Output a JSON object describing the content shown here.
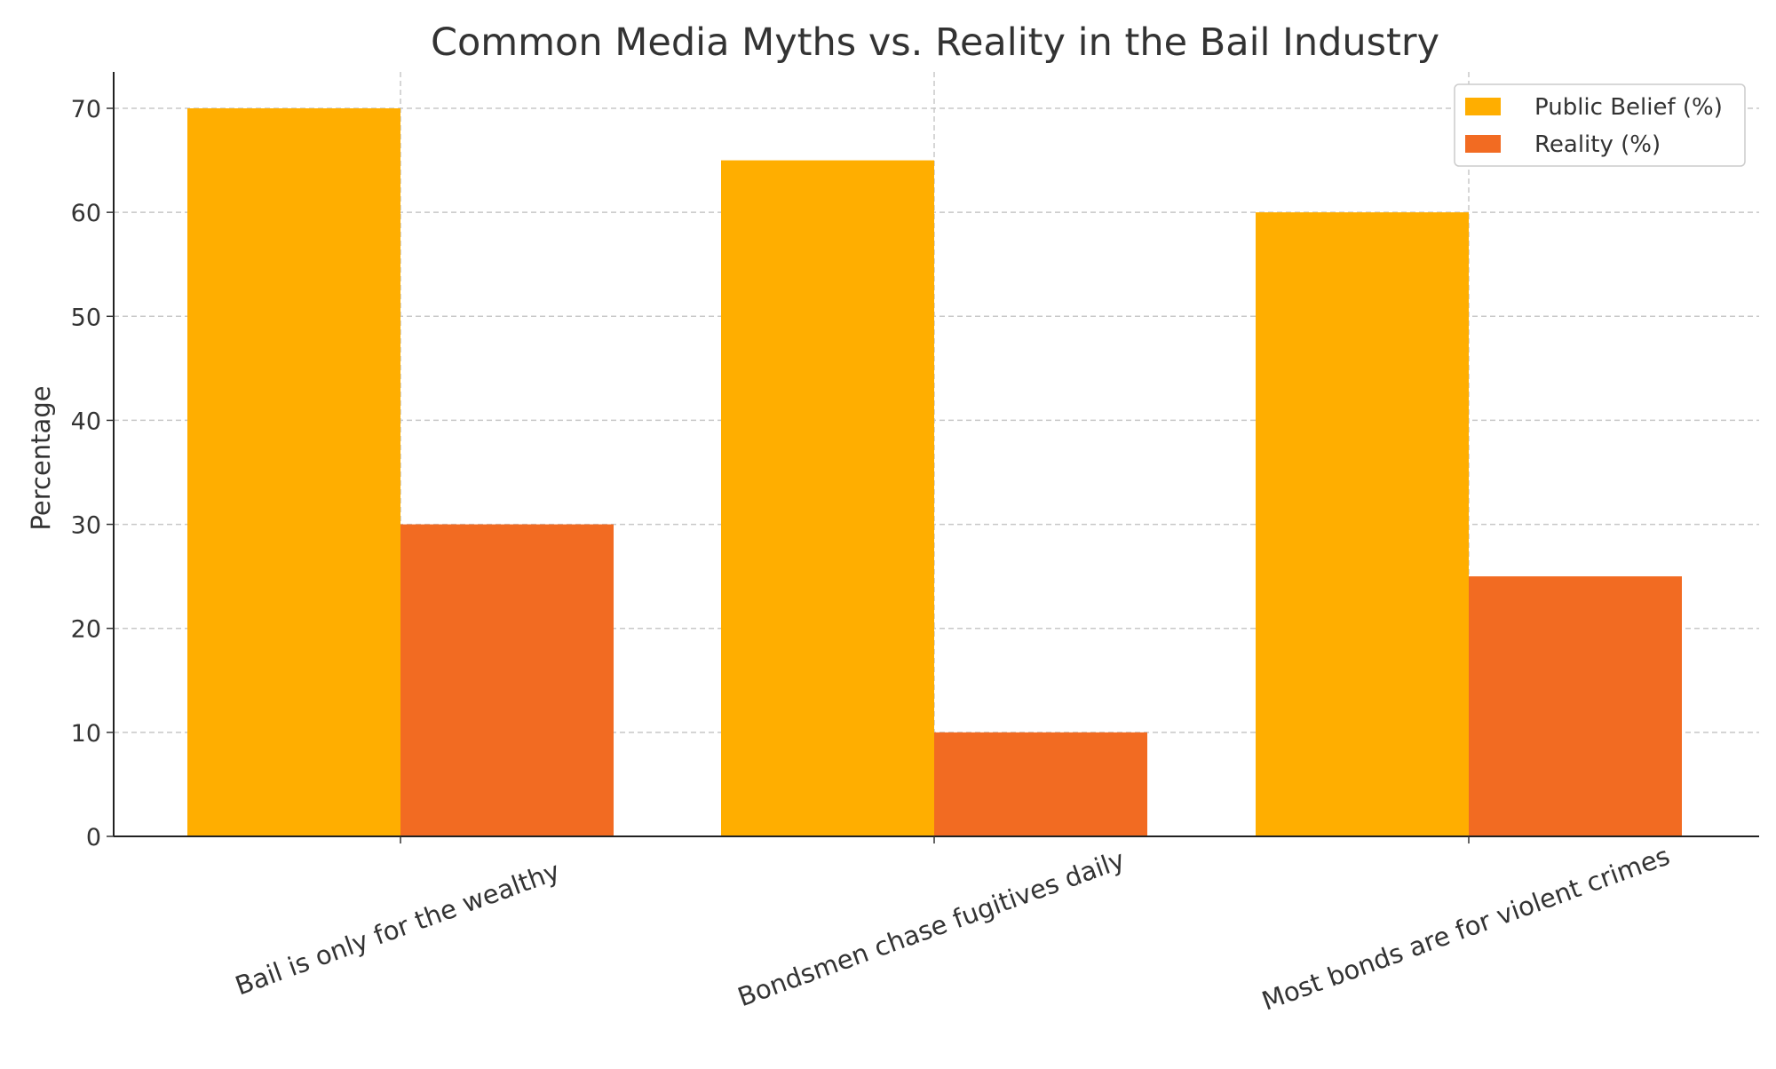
{
  "chart_data": {
    "type": "bar",
    "title": "Common Media Myths vs. Reality in the Bail Industry",
    "xlabel": "",
    "ylabel": "Percentage",
    "categories": [
      "Bail is only for the wealthy",
      "Bondsmen chase fugitives daily",
      "Most bonds are for violent crimes"
    ],
    "series": [
      {
        "name": "Public Belief (%)",
        "values": [
          70,
          65,
          60
        ],
        "color": "#FFAE00"
      },
      {
        "name": "Reality (%)",
        "values": [
          30,
          10,
          25
        ],
        "color": "#F26B22"
      }
    ],
    "ylim": [
      0,
      73.5
    ],
    "yticks": [
      0,
      10,
      20,
      30,
      40,
      50,
      60,
      70
    ],
    "grid": true,
    "legend": "top-right"
  }
}
